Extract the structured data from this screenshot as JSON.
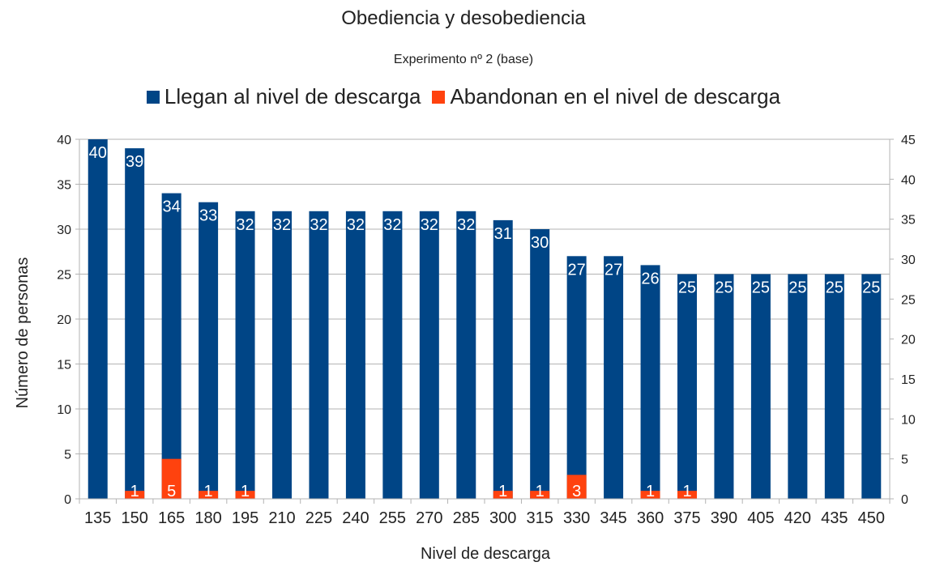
{
  "chart_data": {
    "type": "bar",
    "title": "Obediencia y desobediencia",
    "subtitle": "Experimento nº 2 (base)",
    "xlabel": "Nivel de descarga",
    "ylabel": "Número de personas",
    "categories": [
      "135",
      "150",
      "165",
      "180",
      "195",
      "210",
      "225",
      "240",
      "255",
      "270",
      "285",
      "300",
      "315",
      "330",
      "345",
      "360",
      "375",
      "390",
      "405",
      "420",
      "435",
      "450"
    ],
    "series": [
      {
        "name": "Llegan al nivel de descarga",
        "color": "#004586",
        "axis": "left",
        "values": [
          40,
          39,
          34,
          33,
          32,
          32,
          32,
          32,
          32,
          32,
          32,
          31,
          30,
          27,
          27,
          26,
          25,
          25,
          25,
          25,
          25,
          25
        ],
        "labels": [
          "40",
          "39",
          "34",
          "33",
          "32",
          "32",
          "32",
          "32",
          "32",
          "32",
          "32",
          "31",
          "30",
          "27",
          "27",
          "26",
          "25",
          "25",
          "25",
          "25",
          "25",
          "25"
        ]
      },
      {
        "name": "Abandonan en el nivel de descarga",
        "color": "#ff420e",
        "axis": "right",
        "values": [
          0,
          1,
          5,
          1,
          1,
          0,
          0,
          0,
          0,
          0,
          0,
          1,
          1,
          3,
          0,
          1,
          1,
          0,
          0,
          0,
          0,
          0
        ],
        "labels": [
          "",
          "1",
          "5",
          "1",
          "1",
          "",
          "",
          "",
          "",
          "",
          "",
          "1",
          "1",
          "3",
          "",
          "1",
          "1",
          "",
          "",
          "",
          "",
          ""
        ]
      }
    ],
    "ylim": [
      0,
      40
    ],
    "y2lim": [
      0,
      45
    ],
    "yticks": [
      "0",
      "5",
      "10",
      "15",
      "20",
      "25",
      "30",
      "35",
      "40"
    ],
    "y2ticks": [
      "0",
      "5",
      "10",
      "15",
      "20",
      "25",
      "30",
      "35",
      "40",
      "45"
    ],
    "grid": true,
    "legend": "top"
  }
}
